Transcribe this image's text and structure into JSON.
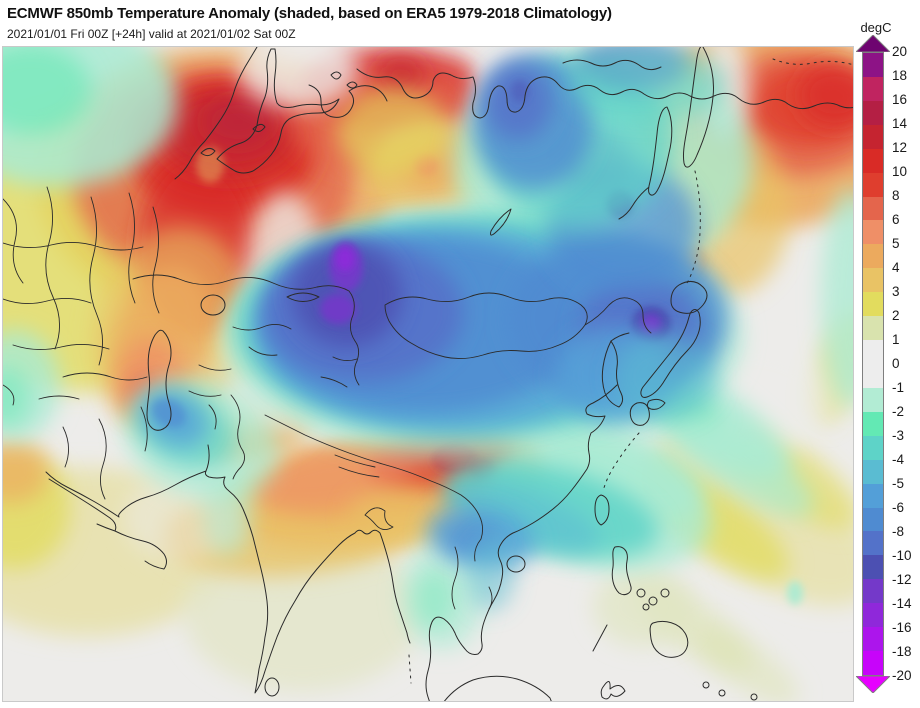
{
  "header": {
    "title": "ECMWF 850mb Temperature Anomaly (shaded, based on ERA5 1979-2018 Climatology)",
    "subtitle": "2021/01/01 Fri 00Z [+24h] valid at 2021/01/02 Sat 00Z"
  },
  "colorbar": {
    "unit": "degC",
    "border_color": "#7f7f7f",
    "arrow_up_color": "#6E0470",
    "arrow_down_color": "#E600FF",
    "ticks": [
      "20",
      "18",
      "16",
      "14",
      "12",
      "10",
      "8",
      "6",
      "5",
      "4",
      "3",
      "2",
      "1",
      "0",
      "-1",
      "-2",
      "-3",
      "-4",
      "-5",
      "-6",
      "-8",
      "-10",
      "-12",
      "-14",
      "-16",
      "-18",
      "-20"
    ],
    "segments": [
      {
        "range": "18 to 20",
        "color": "#8D1386",
        "dotted": true
      },
      {
        "range": "16 to 18",
        "color": "#C02460",
        "dotted": true
      },
      {
        "range": "14 to 16",
        "color": "#B41F44",
        "dotted": false
      },
      {
        "range": "12 to 14",
        "color": "#C52430",
        "dotted": false
      },
      {
        "range": "10 to 12",
        "color": "#D92B26",
        "dotted": false
      },
      {
        "range": "8 to 10",
        "color": "#DF3E2E",
        "dotted": false
      },
      {
        "range": "6 to 8",
        "color": "#E4654C",
        "dotted": false
      },
      {
        "range": "5 to 6",
        "color": "#EF8F67",
        "dotted": false
      },
      {
        "range": "4 to 5",
        "color": "#ECAA5E",
        "dotted": false
      },
      {
        "range": "3 to 4",
        "color": "#E9C365",
        "dotted": false
      },
      {
        "range": "2 to 3",
        "color": "#E2DC5E",
        "dotted": false
      },
      {
        "range": "1 to 2",
        "color": "#D9E3AE",
        "dotted": false
      },
      {
        "range": "0 to 1",
        "color": "#EDEDED",
        "dotted": false
      },
      {
        "range": "-1 to 0",
        "color": "#EDEDED",
        "dotted": false
      },
      {
        "range": "-2 to -1",
        "color": "#B2ECD4",
        "dotted": false
      },
      {
        "range": "-3 to -2",
        "color": "#63E9B4",
        "dotted": false
      },
      {
        "range": "-4 to -3",
        "color": "#5ED3C8",
        "dotted": false
      },
      {
        "range": "-5 to -4",
        "color": "#5ABCD2",
        "dotted": false
      },
      {
        "range": "-6 to -5",
        "color": "#539FD8",
        "dotted": false
      },
      {
        "range": "-8 to -6",
        "color": "#4F8BD1",
        "dotted": false
      },
      {
        "range": "-10 to -8",
        "color": "#5372C9",
        "dotted": false
      },
      {
        "range": "-12 to -10",
        "color": "#4C50B2",
        "dotted": false
      },
      {
        "range": "-14 to -12",
        "color": "#7439C9",
        "dotted": false
      },
      {
        "range": "-16 to -14",
        "color": "#8F28DA",
        "dotted": false
      },
      {
        "range": "-18 to -16",
        "color": "#AC15EC",
        "dotted": false
      },
      {
        "range": "-20 to -18",
        "color": "#C704FA",
        "dotted": false
      }
    ]
  },
  "map": {
    "background_color": "#EDECEA",
    "coastline_color": "#2B2B2B",
    "anomaly_blobs_schema": [
      "name",
      "x",
      "y",
      "rx",
      "ry",
      "rot_deg",
      "color",
      "opacity",
      "sharp_edge"
    ],
    "anomaly_blobs": [
      [
        "arabia-pale-yellow",
        85,
        505,
        140,
        85,
        0,
        "#E6DFA0",
        0.75,
        0
      ],
      [
        "left-edge-yellow",
        12,
        462,
        55,
        60,
        0,
        "#E2DC5E",
        0.8,
        0
      ],
      [
        "left-edge-orange",
        8,
        424,
        38,
        32,
        0,
        "#ECAA5E",
        0.7,
        0
      ],
      [
        "india-south-pale",
        300,
        565,
        120,
        80,
        0,
        "#E4E6C8",
        0.8,
        0
      ],
      [
        "india-yellow-band",
        290,
        480,
        130,
        48,
        -5,
        "#E9C365",
        0.8,
        0
      ],
      [
        "india-orange-band",
        330,
        462,
        90,
        28,
        -5,
        "#ECAA5E",
        0.75,
        0
      ],
      [
        "pacific-pale-band",
        760,
        470,
        130,
        60,
        35,
        "#E6DFA0",
        0.7,
        0
      ],
      [
        "pacific-yellow-streak-1",
        710,
        475,
        90,
        32,
        35,
        "#E2DC5E",
        0.75,
        0
      ],
      [
        "pacific-yellow-streak-2",
        790,
        430,
        80,
        30,
        35,
        "#E2DC5E",
        0.6,
        0
      ],
      [
        "pacific-pale-streak-3",
        690,
        580,
        70,
        25,
        35,
        "#DCE3B0",
        0.6,
        0
      ],
      [
        "pacific-pale-streak-4",
        745,
        620,
        60,
        22,
        35,
        "#DCE3B0",
        0.5,
        0
      ],
      [
        "philippines-pale-green",
        640,
        560,
        50,
        40,
        0,
        "#E0E5C2",
        0.7,
        0
      ],
      [
        "right-edge-yellow",
        838,
        320,
        25,
        60,
        20,
        "#E2DC5E",
        0.5,
        0
      ],
      [
        "nw-warm-orange-base",
        215,
        135,
        180,
        135,
        0,
        "#ECAA5E",
        0.85,
        0
      ],
      [
        "nw-warm-yellow-ring",
        75,
        205,
        140,
        140,
        0,
        "#E2DC5E",
        0.8,
        0
      ],
      [
        "nw-warm-yellow-east-edge",
        235,
        245,
        55,
        90,
        0,
        "#E2DC5E",
        0.5,
        0
      ],
      [
        "nw-warm-salmon",
        210,
        130,
        140,
        110,
        0,
        "#E4654C",
        0.8,
        0
      ],
      [
        "nw-warm-red",
        220,
        100,
        95,
        70,
        0,
        "#D92B26",
        0.9,
        0
      ],
      [
        "nw-warm-red-tongue",
        195,
        200,
        60,
        90,
        0,
        "#D92B26",
        0.7,
        0
      ],
      [
        "nw-warm-dark-red",
        225,
        85,
        70,
        45,
        0,
        "#C52430",
        0.8,
        0
      ],
      [
        "nw-warm-darkest",
        235,
        75,
        35,
        25,
        0,
        "#B41F44",
        0.5,
        0
      ],
      [
        "nw-warm-yellow-hole",
        207,
        118,
        14,
        18,
        0,
        "#E9C365",
        0.45,
        1
      ],
      [
        "top-red-east",
        390,
        42,
        95,
        42,
        0,
        "#D92B26",
        0.85,
        0
      ],
      [
        "top-orange-east",
        395,
        78,
        110,
        50,
        0,
        "#E4654C",
        0.65,
        0
      ],
      [
        "top-dark-red-spot",
        398,
        28,
        25,
        18,
        0,
        "#C52430",
        0.7,
        0
      ],
      [
        "caspian-yellow-fringe",
        170,
        285,
        80,
        105,
        10,
        "#E9C365",
        0.6,
        0
      ],
      [
        "caspian-orange-streak",
        158,
        295,
        48,
        80,
        15,
        "#ECAA5E",
        0.8,
        0
      ],
      [
        "caspian-salmon",
        148,
        330,
        32,
        40,
        0,
        "#EF8F67",
        0.7,
        0
      ],
      [
        "caspian-red-spot",
        142,
        350,
        20,
        24,
        0,
        "#E4654C",
        0.6,
        0
      ],
      [
        "midtop-sandy-blob",
        433,
        125,
        70,
        50,
        0,
        "#E9C365",
        0.85,
        0
      ],
      [
        "midtop-orange-core",
        427,
        122,
        35,
        25,
        0,
        "#ECAA5E",
        0.8,
        0
      ],
      [
        "midtop-salmon-dot",
        423,
        118,
        12,
        10,
        0,
        "#EF8F67",
        0.8,
        1
      ],
      [
        "midtop-yellow-bridge",
        390,
        85,
        55,
        45,
        0,
        "#E2DC5E",
        0.6,
        0
      ],
      [
        "ne-warm-orange-base",
        775,
        80,
        140,
        100,
        0,
        "#ECAA5E",
        0.9,
        0
      ],
      [
        "ne-warm-salmon",
        788,
        68,
        95,
        62,
        0,
        "#E4654C",
        0.85,
        0
      ],
      [
        "ne-warm-red",
        806,
        58,
        60,
        42,
        0,
        "#DF3E2E",
        0.85,
        0
      ],
      [
        "ne-warm-dark-red",
        832,
        48,
        38,
        32,
        0,
        "#D92B26",
        0.7,
        0
      ],
      [
        "ne-warm-yellow-fringe",
        722,
        165,
        65,
        85,
        0,
        "#E9C365",
        0.7,
        0
      ],
      [
        "kamchatka-orange-1",
        692,
        168,
        18,
        26,
        0,
        "#ECAA5E",
        0.8,
        1
      ],
      [
        "kamchatka-orange-2",
        690,
        215,
        14,
        20,
        0,
        "#ECAA5E",
        0.7,
        1
      ],
      [
        "kamchatka-yellow-curl",
        662,
        235,
        26,
        42,
        0,
        "#E9C365",
        0.6,
        0
      ],
      [
        "tibet-yellow-fringe",
        380,
        445,
        160,
        55,
        -6,
        "#E9C365",
        0.75,
        0
      ],
      [
        "tibet-orange-band",
        400,
        428,
        145,
        42,
        -6,
        "#ECAA5E",
        0.9,
        0
      ],
      [
        "tibet-red-core",
        440,
        416,
        75,
        28,
        -6,
        "#DF3E2E",
        0.85,
        0
      ],
      [
        "tibet-dark-red-1",
        452,
        412,
        24,
        15,
        0,
        "#C52430",
        0.8,
        1
      ],
      [
        "tibet-dark-red-2",
        480,
        422,
        14,
        11,
        0,
        "#C52430",
        0.7,
        1
      ],
      [
        "tibet-salmon-west",
        330,
        430,
        85,
        30,
        -10,
        "#EF8F67",
        0.6,
        0
      ],
      [
        "kashmir-yellow",
        252,
        382,
        62,
        28,
        -15,
        "#E9C365",
        0.6,
        0
      ],
      [
        "kashmir-orange",
        258,
        390,
        48,
        20,
        -15,
        "#ECAA5E",
        0.7,
        0
      ],
      [
        "bengal-yellow",
        400,
        468,
        55,
        28,
        0,
        "#E9C365",
        0.6,
        0
      ],
      [
        "gap-nw-vs-cold",
        282,
        235,
        40,
        90,
        0,
        "#EDECEA",
        0.75,
        0
      ],
      [
        "gap-caspian-vs-cold",
        255,
        310,
        35,
        60,
        0,
        "#EDECEA",
        0.6,
        0
      ],
      [
        "gap-north-scandinavia",
        295,
        22,
        60,
        40,
        0,
        "#EDECEA",
        0.8,
        0
      ],
      [
        "gap-vertical-north-a",
        497,
        48,
        26,
        60,
        0,
        "#EDECEA",
        0.9,
        0
      ],
      [
        "gap-vertical-north-b",
        508,
        135,
        36,
        50,
        0,
        "#EDECEA",
        0.8,
        0
      ],
      [
        "gap-below-sandy",
        455,
        185,
        80,
        28,
        -5,
        "#EDECEA",
        0.6,
        0
      ],
      [
        "gap-ne",
        722,
        38,
        24,
        55,
        0,
        "#EDECEA",
        0.85,
        0
      ],
      [
        "gap-tarim",
        330,
        355,
        120,
        30,
        -4,
        "#EDECEA",
        0.65,
        0
      ],
      [
        "gap-se-of-pool",
        748,
        352,
        80,
        55,
        0,
        "#EDECEA",
        0.6,
        0
      ],
      [
        "gap-arabia",
        180,
        470,
        60,
        45,
        0,
        "#EDECEA",
        0.5,
        0
      ],
      [
        "scandinavia-mint",
        55,
        55,
        120,
        85,
        0,
        "#A9EBD3",
        0.85,
        0
      ],
      [
        "scandinavia-green",
        28,
        42,
        60,
        45,
        0,
        "#62E8B2",
        0.6,
        0
      ],
      [
        "ne-siberia-mint-base",
        600,
        115,
        150,
        115,
        0,
        "#A9EBD3",
        0.8,
        0
      ],
      [
        "central-mint-base",
        480,
        290,
        260,
        125,
        0,
        "#A9EBD3",
        0.7,
        0
      ],
      [
        "se-asia-mint",
        595,
        458,
        115,
        62,
        12,
        "#A9EBD3",
        0.8,
        0
      ],
      [
        "taiwan-mint-ext",
        622,
        428,
        80,
        40,
        20,
        "#A9EBD3",
        0.8,
        0
      ],
      [
        "pakistan-mint",
        198,
        392,
        80,
        58,
        20,
        "#A9EBD3",
        0.7,
        0
      ],
      [
        "india-coast-mint",
        225,
        465,
        25,
        45,
        0,
        "#A9EBD3",
        0.5,
        0
      ],
      [
        "left-mid-mint",
        12,
        338,
        45,
        55,
        0,
        "#A9EBD3",
        0.8,
        0
      ],
      [
        "left-mid-green",
        4,
        350,
        22,
        30,
        0,
        "#62E8B2",
        0.5,
        0
      ],
      [
        "bengal-mint",
        440,
        548,
        42,
        55,
        0,
        "#A9EBD3",
        0.6,
        0
      ],
      [
        "bengal-green",
        432,
        552,
        20,
        30,
        0,
        "#62E8B2",
        0.4,
        0
      ],
      [
        "phil-east-mint",
        792,
        546,
        8,
        12,
        0,
        "#A9EBD3",
        0.9,
        1
      ],
      [
        "right-edge-mint",
        848,
        250,
        30,
        110,
        0,
        "#A9EBD3",
        0.75,
        0
      ],
      [
        "japan-se-mint-1",
        700,
        370,
        100,
        35,
        33,
        "#A9EBD3",
        0.85,
        0
      ],
      [
        "japan-se-green",
        672,
        352,
        50,
        22,
        33,
        "#62E8B2",
        0.5,
        0
      ],
      [
        "japan-se-mint-2",
        742,
        420,
        80,
        28,
        33,
        "#A9EBD3",
        0.7,
        0
      ],
      [
        "central-teal",
        470,
        278,
        240,
        112,
        0,
        "#5DD3C8",
        0.8,
        0
      ],
      [
        "central-blue",
        450,
        282,
        200,
        102,
        0,
        "#55A3D8",
        0.85,
        0
      ],
      [
        "central-deep-blue",
        420,
        278,
        160,
        88,
        0,
        "#4F8BD1",
        0.85,
        0
      ],
      [
        "central-west-core",
        360,
        265,
        100,
        70,
        0,
        "#5571C9",
        0.9,
        0
      ],
      [
        "central-indigo-core",
        344,
        248,
        55,
        52,
        0,
        "#4C50B2",
        0.85,
        0
      ],
      [
        "purple-core-a",
        343,
        220,
        17,
        25,
        0,
        "#7439C9",
        0.95,
        1
      ],
      [
        "purple-core-a2",
        342,
        212,
        9,
        12,
        0,
        "#8F28DA",
        0.9,
        1
      ],
      [
        "purple-core-b",
        335,
        262,
        18,
        15,
        0,
        "#7439C9",
        0.9,
        1
      ],
      [
        "east-lobe-blue",
        615,
        272,
        110,
        82,
        0,
        "#4F8BD1",
        0.8,
        0
      ],
      [
        "east-lobe-deep",
        638,
        282,
        62,
        52,
        0,
        "#5571C9",
        0.85,
        0
      ],
      [
        "east-purple-core",
        648,
        277,
        20,
        18,
        0,
        "#4C50B2",
        0.95,
        1
      ],
      [
        "east-purple-bright",
        648,
        277,
        10,
        10,
        0,
        "#7439C9",
        0.95,
        1
      ],
      [
        "ne-china-blue",
        620,
        180,
        75,
        65,
        0,
        "#4F8BD1",
        0.7,
        0
      ],
      [
        "ne-china-deep",
        590,
        112,
        40,
        30,
        0,
        "#5571C9",
        0.5,
        0
      ],
      [
        "ne-china-purple-spot",
        617,
        157,
        14,
        14,
        0,
        "#4C50B2",
        0.55,
        1
      ],
      [
        "korea-blue",
        612,
        328,
        58,
        48,
        0,
        "#55A3D8",
        0.8,
        0
      ],
      [
        "japan-blue",
        662,
        330,
        52,
        42,
        0,
        "#5ABCD2",
        0.6,
        0
      ],
      [
        "ne-siberia-teal",
        575,
        95,
        95,
        85,
        0,
        "#5DD3C8",
        0.7,
        0
      ],
      [
        "ne-siberia-blue",
        530,
        75,
        60,
        68,
        0,
        "#4F8BD1",
        0.8,
        0
      ],
      [
        "ne-siberia-deep",
        515,
        55,
        34,
        38,
        0,
        "#5571C9",
        0.8,
        0
      ],
      [
        "ne-siberia-dot",
        517,
        44,
        9,
        11,
        0,
        "#4C50B2",
        0.45,
        1
      ],
      [
        "chukotka-blue",
        630,
        18,
        55,
        26,
        0,
        "#5571C9",
        0.7,
        0
      ],
      [
        "chukotka-teal",
        645,
        35,
        80,
        38,
        0,
        "#5DD3C8",
        0.5,
        0
      ],
      [
        "schina-teal-band",
        548,
        462,
        110,
        42,
        14,
        "#5DD3C8",
        0.85,
        0
      ],
      [
        "schina-coast-blue",
        520,
        470,
        80,
        28,
        18,
        "#5ABCD2",
        0.6,
        0
      ],
      [
        "schina-blue-core",
        478,
        490,
        55,
        30,
        10,
        "#55A3D8",
        0.85,
        0
      ],
      [
        "schina-deep-core",
        470,
        492,
        28,
        17,
        0,
        "#4F8BD1",
        0.7,
        0
      ],
      [
        "vietnam-blue-tongue",
        488,
        526,
        24,
        38,
        0,
        "#5ABCD2",
        0.5,
        0
      ],
      [
        "pakistan-teal",
        182,
        382,
        52,
        36,
        25,
        "#5DD3C8",
        0.7,
        0
      ],
      [
        "pakistan-blue",
        172,
        372,
        34,
        26,
        30,
        "#55A3D8",
        0.85,
        0
      ],
      [
        "pakistan-deep",
        166,
        366,
        18,
        13,
        30,
        "#4F8BD1",
        0.65,
        1
      ]
    ]
  }
}
